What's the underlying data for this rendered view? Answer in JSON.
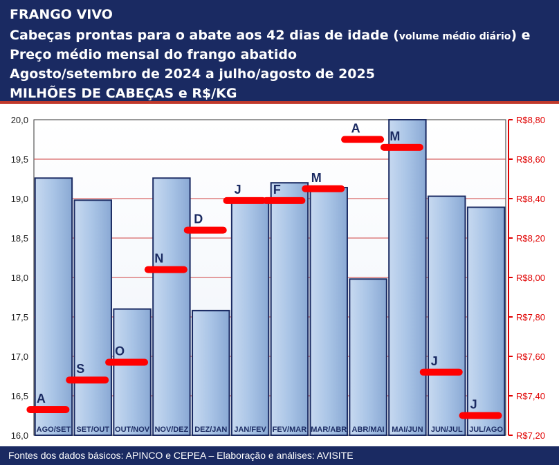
{
  "header": {
    "line1": "FRANGO VIVO",
    "line2_main": "Cabeças prontas para o abate aos 42 dias de idade (",
    "line2_small": "volume médio diário",
    "line2_end": ") e",
    "line3": "Preço médio mensal do frango abatido",
    "line4": "Agosto/setembro de 2024 a julho/agosto de 2025",
    "line5": "MILHÕES DE CABEÇAS e R$/KG"
  },
  "footer": {
    "source": "Fontes dos dados básicos: APINCO e CEPEA – Elaboração e análises: AVISITE"
  },
  "colors": {
    "header_bg": "#1a2a62",
    "bar_fill": "#a9c4e6",
    "bar_stroke": "#1a2a62",
    "price_marker": "#ff0000",
    "right_axis": "#e00000",
    "gridline": "#d04040"
  },
  "chart_data": {
    "type": "bar",
    "categories": [
      "AGO/SET",
      "SET/OUT",
      "OUT/NOV",
      "NOV/DEZ",
      "DEZ/JAN",
      "JAN/FEV",
      "FEV/MAR",
      "MAR/ABR",
      "ABR/MAI",
      "MAI/JUN",
      "JUN/JUL",
      "JUL/AGO"
    ],
    "series": [
      {
        "axis": "left",
        "type": "bar",
        "values": [
          19.26,
          18.98,
          17.6,
          19.26,
          17.58,
          18.96,
          19.2,
          19.14,
          17.98,
          20.0,
          19.03,
          18.89
        ]
      },
      {
        "axis": "right",
        "type": "marker",
        "point_labels": [
          "A",
          "S",
          "O",
          "N",
          "D",
          "J",
          "F",
          "M",
          "A",
          "M",
          "J",
          "J"
        ],
        "values": [
          7.33,
          7.48,
          7.57,
          8.04,
          8.24,
          8.39,
          8.39,
          8.45,
          8.7,
          8.66,
          7.52,
          7.3
        ]
      }
    ],
    "left_axis": {
      "ylim": [
        16.0,
        20.0
      ],
      "ticks": [
        "16,0",
        "16,5",
        "17,0",
        "17,5",
        "18,0",
        "18,5",
        "19,0",
        "19,5",
        "20,0"
      ]
    },
    "right_axis": {
      "ylim": [
        7.2,
        8.8
      ],
      "ticks": [
        "R$7,20",
        "R$7,40",
        "R$7,60",
        "R$7,80",
        "R$8,00",
        "R$8,20",
        "R$8,40",
        "R$8,60",
        "R$8,80"
      ]
    },
    "grid": true
  }
}
